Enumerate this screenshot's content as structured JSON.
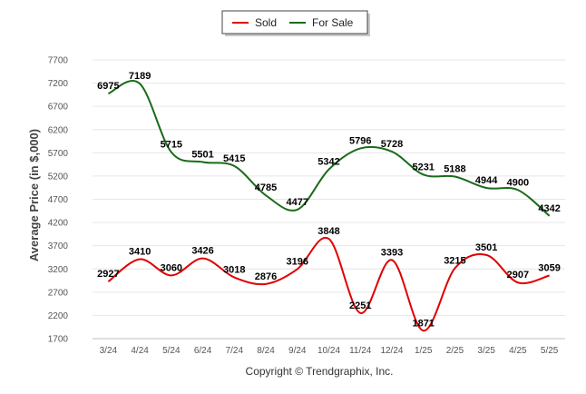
{
  "credit": "Copyright © Trendgraphix, Inc.",
  "chart_data": {
    "type": "line",
    "title": "",
    "xlabel": "",
    "ylabel": "Average Price (in $,000)",
    "categories": [
      "3/24",
      "4/24",
      "5/24",
      "6/24",
      "7/24",
      "8/24",
      "9/24",
      "10/24",
      "11/24",
      "12/24",
      "1/25",
      "2/25",
      "3/25",
      "4/25",
      "5/25"
    ],
    "yticks": [
      1700,
      2200,
      2700,
      3200,
      3700,
      4200,
      4700,
      5200,
      5700,
      6200,
      6700,
      7200,
      7700
    ],
    "ylim": [
      1700,
      7700
    ],
    "grid": true,
    "legend_position": "top-center",
    "series": [
      {
        "name": "Sold",
        "color": "#e00000",
        "values": [
          2927,
          3410,
          3060,
          3426,
          3018,
          2876,
          3196,
          3848,
          2251,
          3393,
          1871,
          3215,
          3501,
          2907,
          3059
        ]
      },
      {
        "name": "For Sale",
        "color": "#1a6b1a",
        "values": [
          6975,
          7189,
          5715,
          5501,
          5415,
          4785,
          4477,
          5342,
          5796,
          5728,
          5231,
          5188,
          4944,
          4900,
          4342
        ]
      }
    ]
  }
}
